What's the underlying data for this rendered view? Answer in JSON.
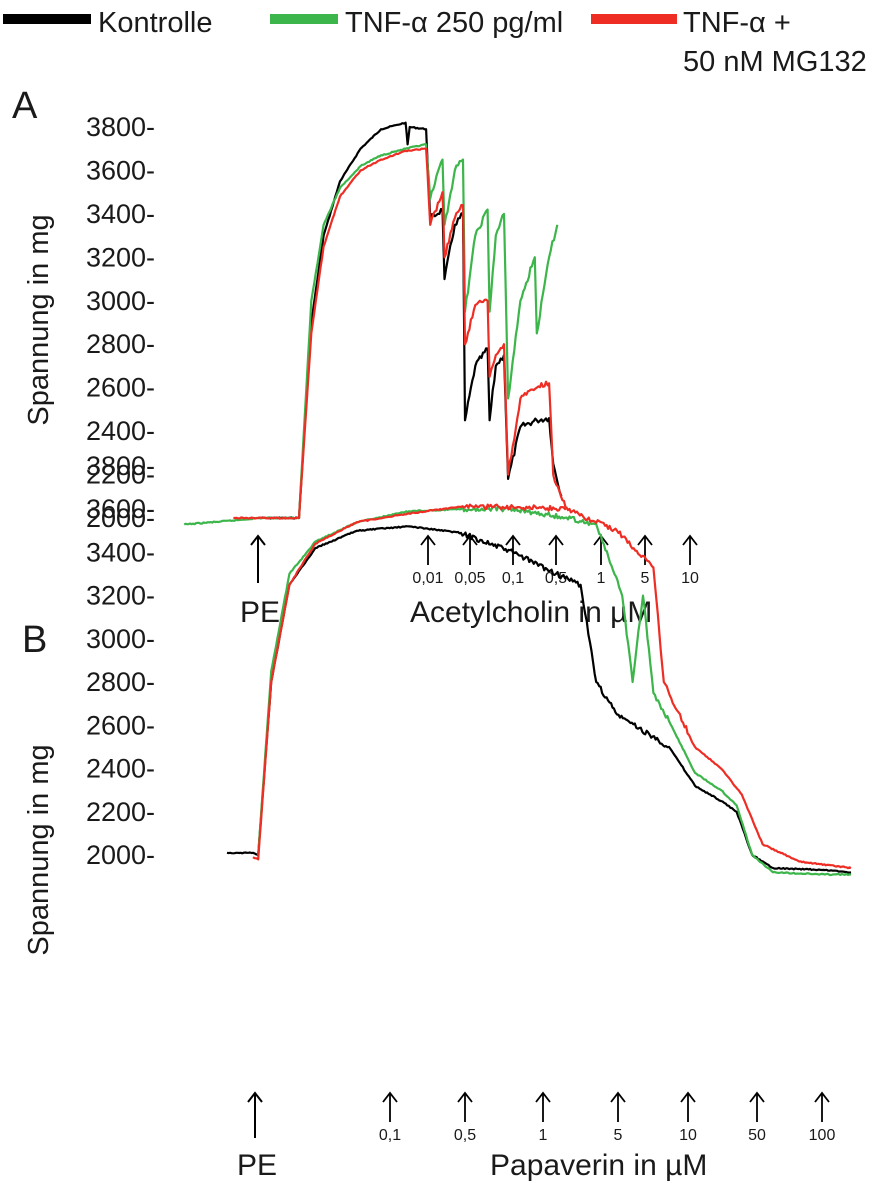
{
  "legend": [
    {
      "label": "Kontrolle",
      "color": "#000000"
    },
    {
      "label": "TNF-α 250 pg/ml",
      "color": "#3cb54a"
    },
    {
      "label_line1": "TNF-α +",
      "label_line2": "50 nM MG132",
      "color": "#ee2e24"
    }
  ],
  "chart_data": [
    {
      "panel": "A",
      "type": "line",
      "ylabel": "Spannung in mg",
      "yticks": [
        "3800-",
        "3600-",
        "3400-",
        "3200-",
        "3000-",
        "2800-",
        "2600-",
        "2400-",
        "2200-",
        "2000-"
      ],
      "ylim": [
        2000,
        3800
      ],
      "stimulus_label": "PE",
      "agent_label": "Acetylcholin in µM",
      "doses": [
        "0,01",
        "0,05",
        "0,1",
        "0,5",
        "1",
        "5",
        "10"
      ],
      "series": [
        {
          "name": "Kontrolle",
          "color": "#000000",
          "points": [
            [
              0,
              2000
            ],
            [
              1,
              2000
            ],
            [
              1.3,
              2900
            ],
            [
              1.6,
              3300
            ],
            [
              2,
              3550
            ],
            [
              2.5,
              3700
            ],
            [
              3,
              3790
            ],
            [
              3.4,
              3810
            ],
            [
              3.6,
              3820
            ],
            [
              3.65,
              3720
            ],
            [
              3.7,
              3800
            ],
            [
              4.1,
              3790
            ],
            [
              4.2,
              3380
            ],
            [
              4.5,
              3420
            ],
            [
              4.55,
              3100
            ],
            [
              4.8,
              3350
            ],
            [
              5,
              3400
            ],
            [
              5.05,
              2450
            ],
            [
              5.3,
              2700
            ],
            [
              5.6,
              2780
            ],
            [
              5.65,
              2450
            ],
            [
              5.8,
              2700
            ],
            [
              6,
              2750
            ],
            [
              6.1,
              2180
            ],
            [
              6.4,
              2420
            ],
            [
              6.8,
              2450
            ],
            [
              7.1,
              2460
            ],
            [
              7.2,
              2250
            ],
            [
              7.4,
              2100
            ]
          ]
        },
        {
          "name": "TNF-α 250 pg/ml",
          "color": "#3cb54a",
          "points": [
            [
              -1.8,
              1970
            ],
            [
              -0.5,
              1990
            ],
            [
              0,
              2000
            ],
            [
              1,
              2000
            ],
            [
              1.3,
              3000
            ],
            [
              1.6,
              3350
            ],
            [
              2,
              3520
            ],
            [
              2.5,
              3620
            ],
            [
              3,
              3670
            ],
            [
              3.6,
              3700
            ],
            [
              4.1,
              3720
            ],
            [
              4.2,
              3470
            ],
            [
              4.5,
              3650
            ],
            [
              4.55,
              3350
            ],
            [
              4.8,
              3600
            ],
            [
              5,
              3650
            ],
            [
              5.05,
              2950
            ],
            [
              5.3,
              3300
            ],
            [
              5.6,
              3420
            ],
            [
              5.65,
              2950
            ],
            [
              5.8,
              3300
            ],
            [
              6,
              3400
            ],
            [
              6.1,
              2550
            ],
            [
              6.4,
              3000
            ],
            [
              6.75,
              3200
            ],
            [
              6.8,
              2850
            ],
            [
              7.1,
              3200
            ],
            [
              7.3,
              3350
            ]
          ]
        },
        {
          "name": "TNF-α + 50 nM MG132",
          "color": "#ee2e24",
          "points": [
            [
              -0.6,
              2000
            ],
            [
              0,
              2000
            ],
            [
              1,
              2000
            ],
            [
              1.3,
              2850
            ],
            [
              1.6,
              3250
            ],
            [
              2,
              3480
            ],
            [
              2.5,
              3600
            ],
            [
              3,
              3650
            ],
            [
              3.6,
              3690
            ],
            [
              4.1,
              3700
            ],
            [
              4.2,
              3350
            ],
            [
              4.5,
              3500
            ],
            [
              4.55,
              3200
            ],
            [
              4.8,
              3380
            ],
            [
              5,
              3440
            ],
            [
              5.05,
              2800
            ],
            [
              5.3,
              2980
            ],
            [
              5.6,
              3000
            ],
            [
              5.65,
              2650
            ],
            [
              5.8,
              2750
            ],
            [
              6,
              2800
            ],
            [
              6.1,
              2200
            ],
            [
              6.4,
              2550
            ],
            [
              6.8,
              2600
            ],
            [
              7.1,
              2620
            ],
            [
              7.2,
              2200
            ],
            [
              7.5,
              2050
            ]
          ]
        }
      ]
    },
    {
      "panel": "B",
      "type": "line",
      "ylabel": "Spannung in mg",
      "yticks": [
        "3800-",
        "3600-",
        "3400-",
        "3200-",
        "3000-",
        "2800-",
        "2600-",
        "2400-",
        "2200-",
        "2000-"
      ],
      "ylim": [
        2000,
        3800
      ],
      "stimulus_label": "PE",
      "agent_label": "Papaverin in µM",
      "doses": [
        "0,1",
        "0,5",
        "1",
        "5",
        "10",
        "50",
        "100"
      ],
      "series": [
        {
          "name": "Kontrolle",
          "color": "#000000",
          "points": [
            [
              -0.5,
              2010
            ],
            [
              0,
              2010
            ],
            [
              0.1,
              2000
            ],
            [
              0.35,
              2800
            ],
            [
              0.7,
              3250
            ],
            [
              1.2,
              3420
            ],
            [
              2,
              3500
            ],
            [
              3,
              3520
            ],
            [
              4,
              3490
            ],
            [
              5,
              3400
            ],
            [
              6,
              3280
            ],
            [
              6.3,
              3250
            ],
            [
              6.6,
              2800
            ],
            [
              7,
              2650
            ],
            [
              8,
              2500
            ],
            [
              8.5,
              2320
            ],
            [
              9,
              2250
            ],
            [
              9.3,
              2200
            ],
            [
              9.6,
              2000
            ],
            [
              10,
              1940
            ],
            [
              11,
              1930
            ],
            [
              11.5,
              1920
            ]
          ]
        },
        {
          "name": "TNF-α 250 pg/ml",
          "color": "#3cb54a",
          "points": [
            [
              0.1,
              2000
            ],
            [
              0.35,
              2850
            ],
            [
              0.7,
              3300
            ],
            [
              1.2,
              3450
            ],
            [
              2,
              3540
            ],
            [
              3,
              3590
            ],
            [
              4,
              3600
            ],
            [
              5,
              3600
            ],
            [
              6,
              3560
            ],
            [
              6.6,
              3530
            ],
            [
              7.1,
              3200
            ],
            [
              7.3,
              2800
            ],
            [
              7.5,
              3200
            ],
            [
              7.7,
              2750
            ],
            [
              8,
              2620
            ],
            [
              8.5,
              2380
            ],
            [
              9,
              2300
            ],
            [
              9.3,
              2230
            ],
            [
              9.6,
              2000
            ],
            [
              10,
              1920
            ],
            [
              11,
              1910
            ],
            [
              11.5,
              1910
            ]
          ]
        },
        {
          "name": "TNF-α + 50 nM MG132",
          "color": "#ee2e24",
          "points": [
            [
              0,
              1990
            ],
            [
              0.1,
              1980
            ],
            [
              0.35,
              2800
            ],
            [
              0.7,
              3250
            ],
            [
              1.2,
              3440
            ],
            [
              2,
              3540
            ],
            [
              3,
              3580
            ],
            [
              4,
              3610
            ],
            [
              5,
              3610
            ],
            [
              6,
              3600
            ],
            [
              7,
              3500
            ],
            [
              7.7,
              3330
            ],
            [
              7.9,
              2800
            ],
            [
              8.5,
              2500
            ],
            [
              9,
              2400
            ],
            [
              9.4,
              2280
            ],
            [
              9.8,
              2050
            ],
            [
              10.5,
              1970
            ],
            [
              11.5,
              1940
            ]
          ]
        }
      ]
    }
  ]
}
